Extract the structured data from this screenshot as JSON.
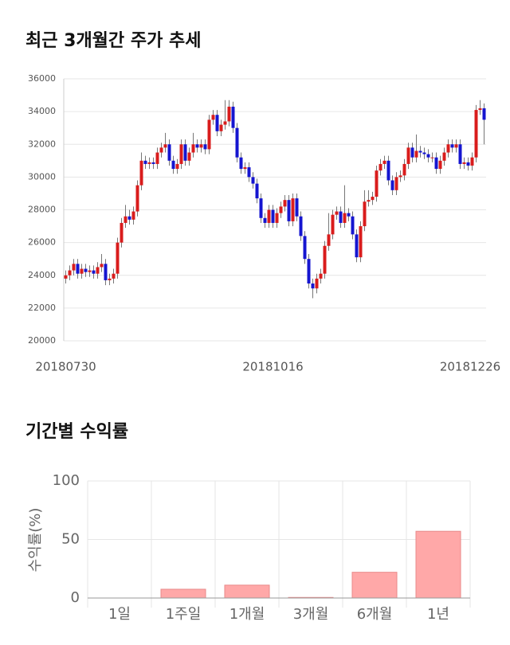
{
  "chart_data": [
    {
      "type": "candlestick",
      "title": "최근 3개월간 주가 추세",
      "categories": [
        "20180730",
        null,
        null,
        null,
        null,
        null,
        null,
        null,
        null,
        null,
        null,
        null,
        null,
        null,
        null,
        null,
        null,
        null,
        null,
        null,
        null,
        null,
        null,
        null,
        null,
        null,
        null,
        null,
        null,
        null,
        null,
        null,
        null,
        null,
        null,
        null,
        null,
        null,
        null,
        null,
        null,
        null,
        null,
        null,
        null,
        null,
        null,
        null,
        null,
        null,
        null,
        null,
        "20181016",
        null,
        null,
        null,
        null,
        null,
        null,
        null,
        null,
        null,
        null,
        null,
        null,
        null,
        null,
        null,
        null,
        null,
        null,
        null,
        null,
        null,
        null,
        null,
        null,
        null,
        null,
        null,
        null,
        null,
        null,
        null,
        null,
        null,
        null,
        null,
        null,
        null,
        null,
        null,
        null,
        null,
        null,
        null,
        null,
        null,
        null,
        null,
        null,
        null,
        null,
        null,
        null,
        "20181226"
      ],
      "open": [
        23800,
        24000,
        24300,
        24700,
        24100,
        24400,
        24200,
        24300,
        24100,
        24500,
        24700,
        23700,
        23800,
        24100,
        26000,
        27200,
        27600,
        27400,
        27900,
        29500,
        31000,
        30800,
        30900,
        30800,
        31500,
        31800,
        32000,
        31000,
        30500,
        30800,
        32000,
        31000,
        31500,
        32000,
        31800,
        32000,
        31700,
        33500,
        33800,
        32800,
        33200,
        33400,
        34300,
        33000,
        31200,
        30500,
        30600,
        30000,
        29600,
        28700,
        27500,
        27200,
        28000,
        27200,
        27800,
        28200,
        28600,
        27300,
        28700,
        27600,
        26400,
        25000,
        23500,
        23200,
        23800,
        24100,
        25800,
        26500,
        27700,
        27900,
        27200,
        27800,
        27600,
        26500,
        25100,
        27000,
        28500,
        28600,
        28800,
        30400,
        30800,
        31000,
        29800,
        29200,
        30000,
        30100,
        30800,
        31800,
        31200,
        31600,
        31500,
        31400,
        31200,
        31200,
        30500,
        31000,
        31500,
        32000,
        31800,
        32000,
        30800,
        30900,
        30700,
        31200,
        34100,
        34200
      ],
      "high": [
        24300,
        24600,
        25000,
        25000,
        24700,
        24700,
        24600,
        24600,
        24800,
        25300,
        25000,
        24100,
        24400,
        26300,
        27500,
        28300,
        28000,
        28200,
        29800,
        31500,
        31300,
        31200,
        31200,
        31800,
        32100,
        32700,
        32300,
        31300,
        31100,
        32300,
        32300,
        31800,
        32700,
        32300,
        32300,
        32300,
        33800,
        34100,
        34100,
        33500,
        34700,
        34700,
        34600,
        33300,
        31500,
        30900,
        30900,
        30300,
        29900,
        29000,
        27800,
        28300,
        28300,
        28100,
        28500,
        28900,
        28900,
        29000,
        29000,
        27900,
        26700,
        25300,
        23800,
        24100,
        24400,
        26100,
        27800,
        28000,
        28200,
        28200,
        29500,
        28100,
        27900,
        26800,
        27300,
        29200,
        29200,
        29100,
        30700,
        31100,
        31300,
        31300,
        30100,
        30300,
        30400,
        31100,
        32100,
        32100,
        32600,
        31900,
        31800,
        31700,
        31500,
        31500,
        31300,
        31800,
        32300,
        32300,
        32300,
        32300,
        31200,
        31200,
        31500,
        34400,
        34700,
        34500
      ],
      "low": [
        23500,
        23700,
        24000,
        23800,
        23800,
        23900,
        23900,
        23800,
        23800,
        24200,
        23400,
        23400,
        23500,
        23800,
        25700,
        26900,
        27100,
        27100,
        27600,
        29200,
        30500,
        30500,
        30500,
        30500,
        31200,
        31500,
        30700,
        30200,
        30200,
        30500,
        30700,
        30700,
        31200,
        31500,
        31500,
        31400,
        31400,
        33200,
        32500,
        32500,
        32900,
        33100,
        32700,
        30900,
        30200,
        30200,
        29700,
        29300,
        28400,
        27200,
        26900,
        26900,
        26900,
        26900,
        27500,
        27900,
        27000,
        27000,
        27300,
        26100,
        24700,
        23200,
        22600,
        22900,
        23500,
        23800,
        25500,
        26200,
        27400,
        26900,
        26900,
        27300,
        26200,
        24800,
        24800,
        26700,
        28200,
        28300,
        28500,
        30100,
        30500,
        29500,
        28900,
        28900,
        29700,
        29800,
        30500,
        30900,
        30900,
        31200,
        31100,
        30900,
        30900,
        30200,
        30200,
        30700,
        31200,
        31500,
        31500,
        30500,
        30500,
        30400,
        30400,
        30900,
        33800,
        32000
      ],
      "close": [
        24000,
        24300,
        24700,
        24100,
        24400,
        24200,
        24300,
        24100,
        24500,
        24700,
        23700,
        23800,
        24100,
        26000,
        27200,
        27600,
        27400,
        27900,
        29500,
        31000,
        30800,
        30900,
        30800,
        31500,
        31800,
        32000,
        31000,
        30500,
        30800,
        32000,
        31000,
        31500,
        32000,
        31800,
        32000,
        31700,
        33500,
        33800,
        32800,
        33200,
        33400,
        34300,
        33000,
        31200,
        30500,
        30600,
        30000,
        29600,
        28700,
        27500,
        27200,
        28000,
        27200,
        27800,
        28200,
        28600,
        27300,
        28700,
        27600,
        26400,
        25000,
        23500,
        23200,
        23800,
        24100,
        25800,
        26500,
        27700,
        27900,
        27200,
        27800,
        27600,
        26500,
        25100,
        27000,
        28500,
        28600,
        28800,
        30400,
        30800,
        31000,
        29800,
        29200,
        30000,
        30100,
        30800,
        31800,
        31200,
        31600,
        31500,
        31400,
        31200,
        31200,
        30500,
        31000,
        31500,
        32000,
        31800,
        32000,
        30800,
        30900,
        30700,
        31200,
        34100,
        34200,
        33500
      ],
      "up_color": "#d91c1c",
      "down_color": "#1515d0",
      "ylim": [
        20000,
        36000
      ],
      "yticks": [
        20000,
        22000,
        24000,
        26000,
        28000,
        30000,
        32000,
        34000,
        36000
      ],
      "grid": true
    },
    {
      "type": "bar",
      "title": "기간별 수익률",
      "y_label": "수익률(%)",
      "categories": [
        "1일",
        "1주일",
        "1개월",
        "3개월",
        "6개월",
        "1년"
      ],
      "values": [
        0,
        7.5,
        11,
        0.5,
        22,
        57
      ],
      "color": "#ffa8a8",
      "edge_color": "#e88a8a",
      "ylim": [
        0,
        100
      ],
      "yticks": [
        0,
        50,
        100
      ],
      "grid": true
    }
  ]
}
